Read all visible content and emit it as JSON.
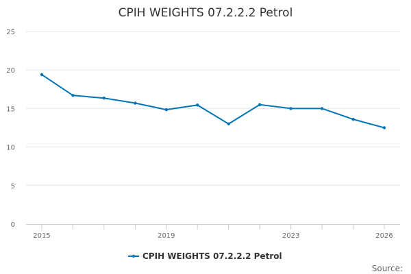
{
  "chart_data": {
    "type": "line",
    "title": "CPIH WEIGHTS 07.2.2.2 Petrol",
    "xlabel": "",
    "ylabel": "",
    "x": [
      2015,
      2016,
      2017,
      2018,
      2019,
      2020,
      2021,
      2022,
      2023,
      2024,
      2025,
      2026
    ],
    "series": [
      {
        "name": "CPIH WEIGHTS 07.2.2.2 Petrol",
        "color": "#0075b4",
        "values": [
          19.4,
          16.7,
          16.35,
          15.7,
          14.85,
          15.45,
          13.0,
          15.5,
          15.0,
          15.0,
          13.6,
          12.5
        ]
      }
    ],
    "ylim": [
      0,
      25
    ],
    "yticks": [
      "0",
      "5",
      "10",
      "15",
      "20",
      "25"
    ],
    "xtick_labels": [
      {
        "year": 2015,
        "label": "2015"
      },
      {
        "year": 2019,
        "label": "2019"
      },
      {
        "year": 2023,
        "label": "2023"
      },
      {
        "year": 2026,
        "label": "2026"
      }
    ],
    "grid": true,
    "legend": "bottom-center"
  },
  "credits": "Source:"
}
